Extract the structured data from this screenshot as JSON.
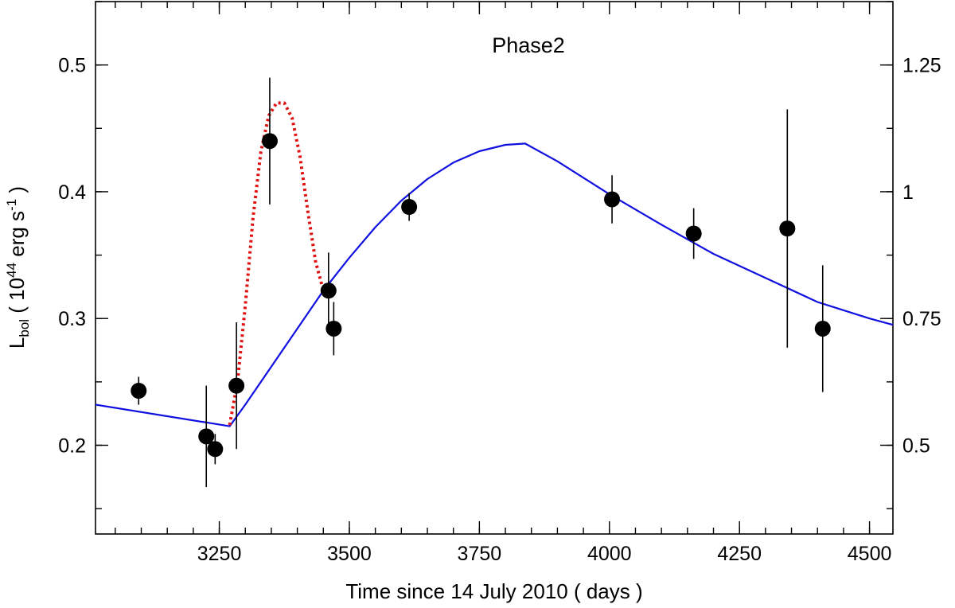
{
  "chart_data": {
    "type": "scatter",
    "title": "",
    "annotation": "Phase2",
    "xlabel": "Time since 14 July 2010 ( days )",
    "ylabel": {
      "base": "L",
      "sub": "bol",
      "pre": " ( 10",
      "sup": "44",
      "mid": " erg s",
      "sup2": "-1",
      "post": " )"
    },
    "xlim": [
      3012,
      4545
    ],
    "ylim": [
      0.13,
      0.55
    ],
    "x_ticks": [
      3250,
      3500,
      3750,
      4000,
      4250,
      4500
    ],
    "x_tick_labels": [
      "3250",
      "3500",
      "3750",
      "4000",
      "4250",
      "4500"
    ],
    "x_minor_step": 50,
    "y_ticks": [
      0.2,
      0.3,
      0.4,
      0.5
    ],
    "y_tick_labels": [
      "0.2",
      "0.3",
      "0.4",
      "0.5"
    ],
    "y_minor_step": 0.05,
    "y2_ticks": [
      0.2,
      0.3,
      0.4,
      0.5
    ],
    "y2_tick_labels": [
      "0.5",
      "0.75",
      "1",
      "1.25"
    ],
    "colors": {
      "points": "#000000",
      "model": "#1010e0",
      "flare": "#e01010"
    },
    "points": [
      {
        "x": 3095,
        "y": 0.243,
        "err": 0.011
      },
      {
        "x": 3225,
        "y": 0.207,
        "err": 0.04
      },
      {
        "x": 3242,
        "y": 0.197,
        "err": 0.012
      },
      {
        "x": 3283,
        "y": 0.247,
        "err": 0.05
      },
      {
        "x": 3347,
        "y": 0.44,
        "err": 0.05
      },
      {
        "x": 3460,
        "y": 0.322,
        "err": 0.03
      },
      {
        "x": 3470,
        "y": 0.292,
        "err": 0.021
      },
      {
        "x": 3615,
        "y": 0.388,
        "err": 0.011
      },
      {
        "x": 4005,
        "y": 0.394,
        "err": 0.019
      },
      {
        "x": 4162,
        "y": 0.367,
        "err": 0.02
      },
      {
        "x": 4342,
        "y": 0.371,
        "err": 0.094
      },
      {
        "x": 4410,
        "y": 0.292,
        "err": 0.05
      }
    ],
    "series": [
      {
        "name": "model",
        "style": "solid",
        "x": [
          3012,
          3270,
          3300,
          3350,
          3400,
          3450,
          3500,
          3550,
          3600,
          3650,
          3700,
          3750,
          3800,
          3838,
          3900,
          4000,
          4100,
          4200,
          4300,
          4400,
          4500,
          4545
        ],
        "y": [
          0.232,
          0.215,
          0.232,
          0.262,
          0.292,
          0.322,
          0.348,
          0.372,
          0.393,
          0.41,
          0.423,
          0.432,
          0.437,
          0.438,
          0.424,
          0.398,
          0.374,
          0.351,
          0.332,
          0.313,
          0.3,
          0.295
        ]
      },
      {
        "name": "flare",
        "style": "dotted",
        "x": [
          3270,
          3285,
          3300,
          3315,
          3330,
          3345,
          3360,
          3375,
          3390,
          3405,
          3420,
          3435,
          3450,
          3458
        ],
        "y": [
          0.216,
          0.25,
          0.31,
          0.38,
          0.432,
          0.46,
          0.47,
          0.47,
          0.458,
          0.428,
          0.385,
          0.345,
          0.322,
          0.318
        ]
      }
    ]
  }
}
